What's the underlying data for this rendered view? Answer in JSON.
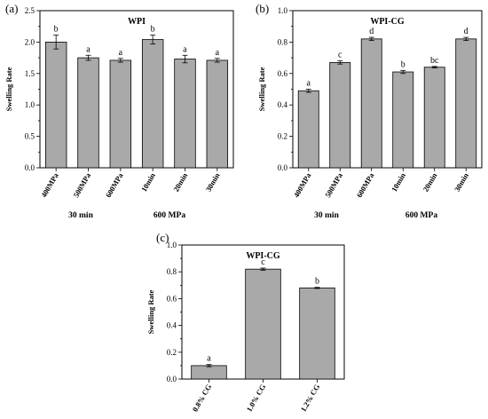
{
  "chart_data": [
    {
      "type": "bar",
      "panel_label": "(a)",
      "title": "WPI",
      "ylabel": "Swelling Rate",
      "ylim": [
        0.0,
        2.5
      ],
      "yticks": [
        "0.0",
        "0.5",
        "1.0",
        "1.5",
        "2.0",
        "2.5"
      ],
      "categories": [
        "400MPa",
        "500MPa",
        "600MPa",
        "10min",
        "20min",
        "30min"
      ],
      "values": [
        2.0,
        1.75,
        1.71,
        2.04,
        1.73,
        1.71
      ],
      "errors": [
        0.11,
        0.04,
        0.03,
        0.07,
        0.06,
        0.03
      ],
      "letters": [
        "b",
        "a",
        "a",
        "b",
        "a",
        "a"
      ],
      "group_labels": [
        "30 min",
        "600 MPa"
      ]
    },
    {
      "type": "bar",
      "panel_label": "(b)",
      "title": "WPI-CG",
      "ylabel": "Swelling Rate",
      "ylim": [
        0.0,
        1.0
      ],
      "yticks": [
        "0.0",
        "0.2",
        "0.4",
        "0.6",
        "0.8",
        "1.0"
      ],
      "categories": [
        "400MPa",
        "500MPa",
        "600MPa",
        "10min",
        "20min",
        "30min"
      ],
      "values": [
        0.49,
        0.67,
        0.82,
        0.61,
        0.64,
        0.82
      ],
      "errors": [
        0.01,
        0.01,
        0.01,
        0.01,
        0.005,
        0.01
      ],
      "letters": [
        "a",
        "c",
        "d",
        "b",
        "bc",
        "d"
      ],
      "group_labels": [
        "30 min",
        "600 MPa"
      ]
    },
    {
      "type": "bar",
      "panel_label": "(c)",
      "title": "WPI-CG",
      "ylabel": "Swelling Rate",
      "ylim": [
        0.0,
        1.0
      ],
      "yticks": [
        "0.0",
        "0.2",
        "0.4",
        "0.6",
        "0.8",
        "1.0"
      ],
      "categories": [
        "0.8% CG",
        "1.0% CG",
        "1.2% CG"
      ],
      "values": [
        0.1,
        0.82,
        0.68
      ],
      "errors": [
        0.008,
        0.008,
        0.004
      ],
      "letters": [
        "a",
        "c",
        "b"
      ],
      "group_labels": []
    }
  ]
}
